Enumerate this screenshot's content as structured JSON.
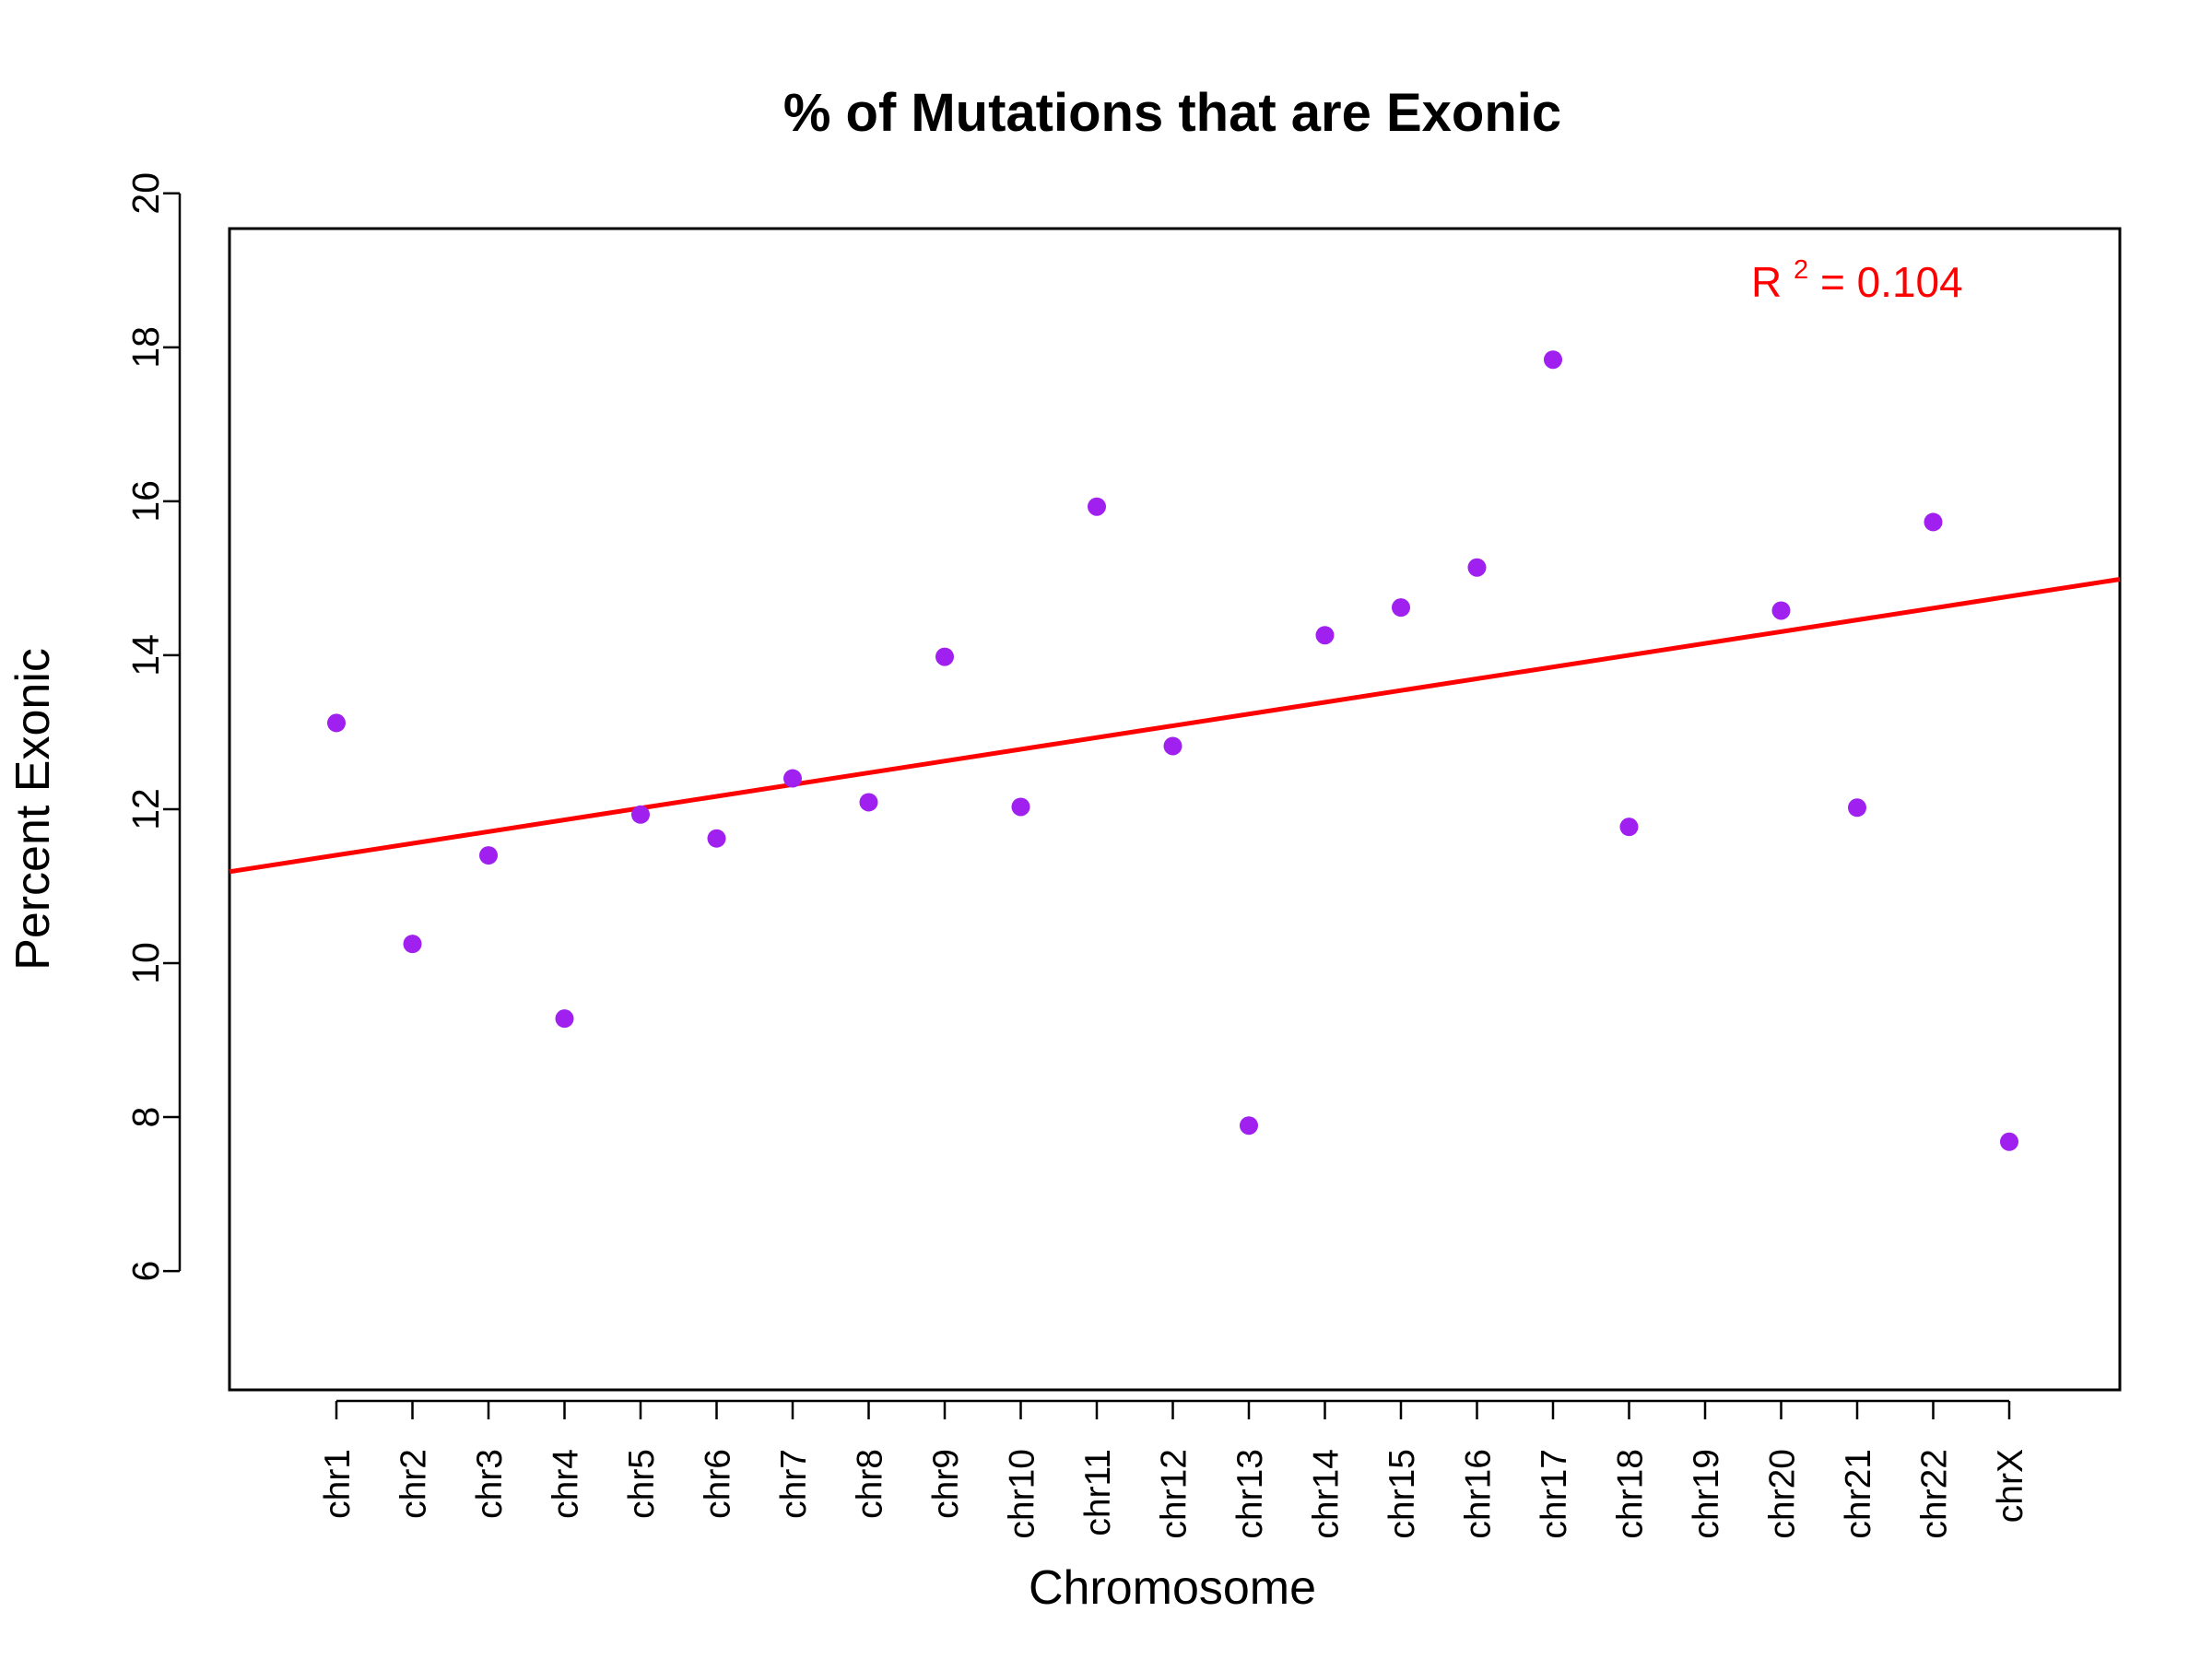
{
  "chart_data": {
    "type": "scatter",
    "title": "% of Mutations that are Exonic",
    "xlabel": "Chromosome",
    "ylabel": "Percent Exonic",
    "categories": [
      "chr1",
      "chr2",
      "chr3",
      "chr4",
      "chr5",
      "chr6",
      "chr7",
      "chr8",
      "chr9",
      "chr10",
      "chr11",
      "chr12",
      "chr13",
      "chr14",
      "chr15",
      "chr16",
      "chr17",
      "chr18",
      "chr19",
      "chr20",
      "chr21",
      "chr22",
      "chrX"
    ],
    "values": [
      13.12,
      10.25,
      11.4,
      9.28,
      11.93,
      11.62,
      12.4,
      12.09,
      13.98,
      12.03,
      15.93,
      12.82,
      7.89,
      14.26,
      14.62,
      15.14,
      17.84,
      11.77,
      null,
      14.58,
      12.02,
      15.73,
      7.68
    ],
    "ylim": [
      6,
      20
    ],
    "y_ticks": [
      "6",
      "8",
      "10",
      "12",
      "14",
      "16",
      "18",
      "20"
    ],
    "regression": {
      "slope": 0.1528,
      "intercept": 11.25,
      "r2_label": "R",
      "r2_sup": "2",
      "r2_value": " = 0.104"
    },
    "colors": {
      "points": "#a020f0",
      "line": "#ff0000",
      "annotation": "#ff0000",
      "axis": "#000000"
    },
    "grid": false,
    "legend": "none"
  }
}
